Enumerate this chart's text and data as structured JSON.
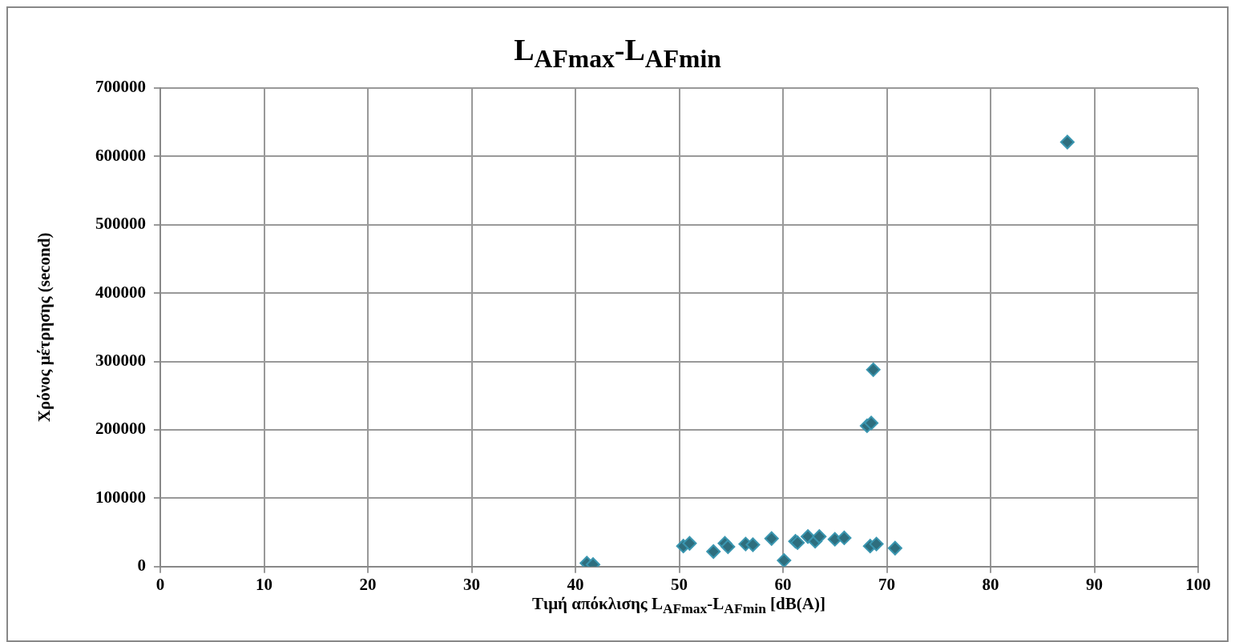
{
  "chart_data": {
    "type": "scatter",
    "title": "L$_{AFmax}$-L$_{AFmin}$",
    "xlabel": "Τιμή απόκλισης L$_{AFmax}$-L$_{AFmin}$ [dB(A)]",
    "ylabel": "Χρόνος μέτρησης (second)",
    "series": [
      {
        "color": "#2e6e7e",
        "x": [
          41.1,
          41.7,
          50.4,
          51.0,
          53.3,
          54.4,
          54.7,
          56.4,
          57.1,
          58.9,
          60.1,
          61.2,
          61.4,
          62.4,
          63.1,
          63.5,
          65.0,
          65.9,
          68.4,
          69.0,
          70.8,
          68.7,
          68.1,
          68.5,
          87.4
        ],
        "values": [
          5000,
          3000,
          30000,
          34000,
          22000,
          34000,
          29000,
          33000,
          32000,
          41000,
          9000,
          37000,
          35000,
          44000,
          37000,
          44000,
          40000,
          42000,
          30000,
          33000,
          27000,
          288000,
          206000,
          210000,
          621000
        ]
      }
    ],
    "xlim": [
      0,
      100
    ],
    "xticks": [
      0,
      10,
      20,
      30,
      40,
      50,
      60,
      70,
      80,
      90,
      100
    ],
    "ylim": [
      0,
      700000
    ],
    "yticks": [
      0,
      100000,
      200000,
      300000,
      400000,
      500000,
      600000,
      700000
    ],
    "grid": true,
    "legend": false,
    "marker": "diamond"
  }
}
